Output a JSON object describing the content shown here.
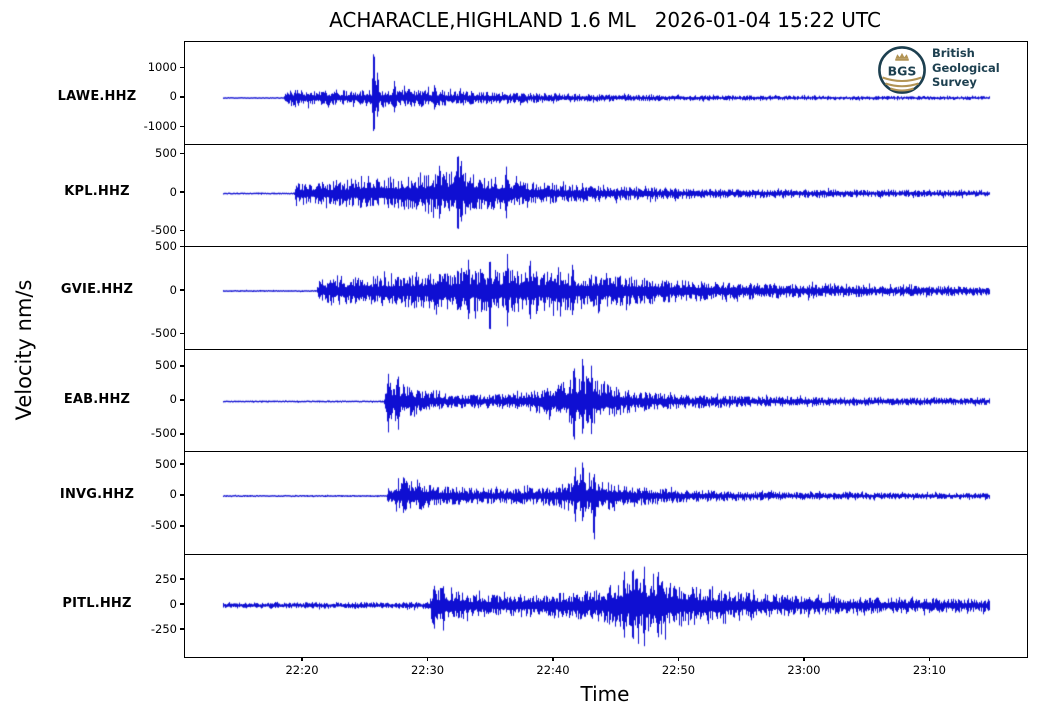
{
  "figure": {
    "title": "ACHARACLE,HIGHLAND 1.6 ML   2026-01-04 15:22 UTC",
    "xlabel": "Time",
    "ylabel": "Velocity nm/s",
    "background": "#ffffff",
    "trace_color": "#0f0fd2",
    "axis_color": "#000000"
  },
  "logo": {
    "abbr": "BGS",
    "lines": [
      "British",
      "Geological",
      "Survey"
    ],
    "navy": "#1d4050",
    "gold": "#b29455"
  },
  "chart_data": {
    "type": "line",
    "title": "ACHARACLE,HIGHLAND 1.6 ML   2026-01-04 15:22 UTC",
    "xlabel": "Time",
    "ylabel": "Velocity nm/s",
    "x_unit": "minutes after 22:00 UTC",
    "xlim": [
      10.59,
      77.7
    ],
    "grid": false,
    "trace_start": 13.6,
    "trace_end": 74.7,
    "xticks": [
      {
        "t": 20,
        "label": "22:20"
      },
      {
        "t": 30,
        "label": "22:30"
      },
      {
        "t": 40,
        "label": "22:40"
      },
      {
        "t": 50,
        "label": "22:50"
      },
      {
        "t": 60,
        "label": "23:00"
      },
      {
        "t": 70,
        "label": "23:10"
      }
    ],
    "stations": [
      {
        "label": "LAWE.HHZ",
        "yticks": [
          {
            "v": 1000,
            "label": "1000"
          },
          {
            "v": 0,
            "label": "0"
          },
          {
            "v": -1000,
            "label": "-1000"
          }
        ],
        "ylim": [
          -1577,
          1898
        ],
        "seed": 101,
        "envelope": [
          [
            13.6,
            30
          ],
          [
            18.45,
            30
          ],
          [
            18.6,
            300
          ],
          [
            20,
            270
          ],
          [
            22,
            250
          ],
          [
            24,
            260
          ],
          [
            26,
            310
          ],
          [
            28,
            310
          ],
          [
            30,
            290
          ],
          [
            32,
            260
          ],
          [
            35,
            220
          ],
          [
            38,
            180
          ],
          [
            42,
            140
          ],
          [
            46,
            115
          ],
          [
            52,
            95
          ],
          [
            60,
            80
          ],
          [
            68,
            70
          ],
          [
            74.7,
            65
          ]
        ],
        "spikes": [
          [
            25.65,
            1850,
            1400
          ],
          [
            25.95,
            950,
            700
          ],
          [
            27.3,
            620,
            520
          ],
          [
            30.5,
            500,
            450
          ]
        ]
      },
      {
        "label": "KPL.HHZ",
        "yticks": [
          {
            "v": 500,
            "label": "500"
          },
          {
            "v": 0,
            "label": "0"
          },
          {
            "v": -500,
            "label": "-500"
          }
        ],
        "ylim": [
          -701,
          630
        ],
        "seed": 202,
        "envelope": [
          [
            13.6,
            13
          ],
          [
            19.3,
            13
          ],
          [
            19.45,
            160
          ],
          [
            20.5,
            140
          ],
          [
            22,
            160
          ],
          [
            24,
            190
          ],
          [
            27,
            200
          ],
          [
            30,
            240
          ],
          [
            31.5,
            280
          ],
          [
            32.5,
            330
          ],
          [
            33.5,
            260
          ],
          [
            35,
            220
          ],
          [
            37,
            170
          ],
          [
            40,
            130
          ],
          [
            44,
            100
          ],
          [
            50,
            75
          ],
          [
            58,
            60
          ],
          [
            66,
            50
          ],
          [
            74.7,
            45
          ]
        ],
        "spikes": [
          [
            32.35,
            615,
            585
          ],
          [
            32.6,
            500,
            430
          ],
          [
            30.9,
            420,
            380
          ],
          [
            36.2,
            380,
            350
          ]
        ]
      },
      {
        "label": "GVIE.HHZ",
        "yticks": [
          {
            "v": 500,
            "label": "500"
          },
          {
            "v": 0,
            "label": "0"
          },
          {
            "v": -500,
            "label": "-500"
          }
        ],
        "ylim": [
          -672,
          506
        ],
        "seed": 303,
        "envelope": [
          [
            13.6,
            11
          ],
          [
            21.1,
            11
          ],
          [
            21.25,
            130
          ],
          [
            23,
            150
          ],
          [
            26,
            180
          ],
          [
            29,
            200
          ],
          [
            32,
            230
          ],
          [
            34.5,
            260
          ],
          [
            36,
            250
          ],
          [
            38,
            240
          ],
          [
            40,
            230
          ],
          [
            43,
            200
          ],
          [
            46,
            170
          ],
          [
            50,
            130
          ],
          [
            55,
            100
          ],
          [
            62,
            75
          ],
          [
            68,
            60
          ],
          [
            74.7,
            55
          ]
        ],
        "spikes": [
          [
            34.9,
            430,
            560
          ],
          [
            36.3,
            440,
            420
          ],
          [
            33.2,
            390,
            350
          ],
          [
            38.1,
            410,
            380
          ],
          [
            41.5,
            350,
            320
          ]
        ]
      },
      {
        "label": "EAB.HHZ",
        "yticks": [
          {
            "v": 500,
            "label": "500"
          },
          {
            "v": 0,
            "label": "0"
          },
          {
            "v": -500,
            "label": "-500"
          }
        ],
        "ylim": [
          -750,
          757
        ],
        "seed": 404,
        "envelope": [
          [
            13.6,
            15
          ],
          [
            26.45,
            15
          ],
          [
            26.6,
            320
          ],
          [
            27.5,
            300
          ],
          [
            28.5,
            220
          ],
          [
            30,
            150
          ],
          [
            31.5,
            110
          ],
          [
            33,
            100
          ],
          [
            36,
            110
          ],
          [
            38,
            140
          ],
          [
            39.5,
            220
          ],
          [
            41,
            330
          ],
          [
            42.5,
            380
          ],
          [
            43.5,
            330
          ],
          [
            44.5,
            240
          ],
          [
            46,
            170
          ],
          [
            48,
            130
          ],
          [
            51,
            100
          ],
          [
            55,
            80
          ],
          [
            62,
            65
          ],
          [
            74.7,
            55
          ]
        ],
        "spikes": [
          [
            26.8,
            430,
            480
          ],
          [
            27.6,
            380,
            430
          ],
          [
            41.6,
            600,
            690
          ],
          [
            42.3,
            740,
            560
          ],
          [
            43.0,
            560,
            510
          ]
        ]
      },
      {
        "label": "INVG.HHZ",
        "yticks": [
          {
            "v": 500,
            "label": "500"
          },
          {
            "v": 0,
            "label": "0"
          },
          {
            "v": -500,
            "label": "-500"
          }
        ],
        "ylim": [
          -944,
          710
        ],
        "seed": 505,
        "envelope": [
          [
            13.6,
            16
          ],
          [
            26.65,
            16
          ],
          [
            26.8,
            130
          ],
          [
            27.5,
            220
          ],
          [
            28.3,
            260
          ],
          [
            29.5,
            220
          ],
          [
            31,
            160
          ],
          [
            33,
            140
          ],
          [
            36,
            130
          ],
          [
            39,
            150
          ],
          [
            41,
            220
          ],
          [
            42.5,
            300
          ],
          [
            43.5,
            280
          ],
          [
            45,
            200
          ],
          [
            47,
            150
          ],
          [
            50,
            110
          ],
          [
            55,
            80
          ],
          [
            62,
            60
          ],
          [
            74.7,
            50
          ]
        ],
        "spikes": [
          [
            28.0,
            310,
            280
          ],
          [
            41.7,
            500,
            450
          ],
          [
            42.3,
            640,
            480
          ],
          [
            43.2,
            420,
            830
          ]
        ]
      },
      {
        "label": "PITL.HHZ",
        "yticks": [
          {
            "v": 250,
            "label": "250"
          },
          {
            "v": 0,
            "label": "0"
          },
          {
            "v": -250,
            "label": "-250"
          }
        ],
        "ylim": [
          -520,
          505
        ],
        "seed": 606,
        "envelope": [
          [
            13.6,
            25
          ],
          [
            15,
            32
          ],
          [
            16.5,
            25
          ],
          [
            18,
            40
          ],
          [
            19,
            30
          ],
          [
            21,
            36
          ],
          [
            23,
            30
          ],
          [
            25,
            40
          ],
          [
            27,
            30
          ],
          [
            28.5,
            36
          ],
          [
            30.1,
            36
          ],
          [
            30.3,
            200
          ],
          [
            31,
            180
          ],
          [
            32,
            140
          ],
          [
            33.5,
            120
          ],
          [
            36,
            110
          ],
          [
            38,
            120
          ],
          [
            40,
            130
          ],
          [
            42,
            140
          ],
          [
            44,
            180
          ],
          [
            45.5,
            260
          ],
          [
            46.8,
            320
          ],
          [
            48,
            300
          ],
          [
            49.5,
            240
          ],
          [
            51,
            200
          ],
          [
            53,
            160
          ],
          [
            55.5,
            130
          ],
          [
            58,
            110
          ],
          [
            61,
            95
          ],
          [
            65,
            85
          ],
          [
            70,
            75
          ],
          [
            74.7,
            70
          ]
        ],
        "spikes": [
          [
            30.45,
            230,
            270
          ],
          [
            31.2,
            200,
            260
          ],
          [
            45.6,
            380,
            360
          ],
          [
            46.3,
            450,
            420
          ],
          [
            47.2,
            420,
            440
          ],
          [
            48.3,
            400,
            380
          ]
        ]
      }
    ]
  }
}
